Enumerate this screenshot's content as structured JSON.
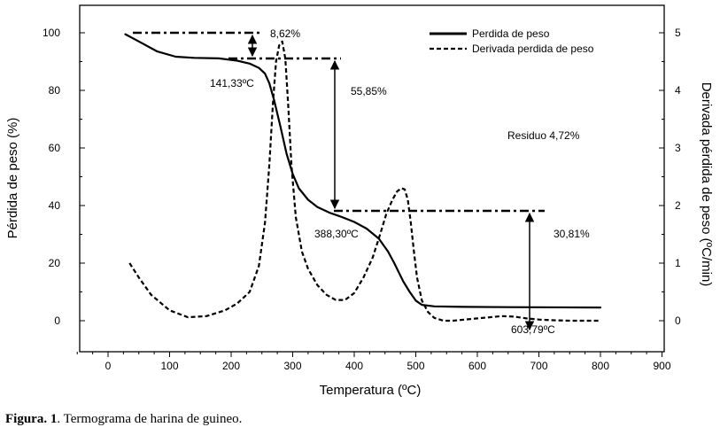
{
  "chart_data": {
    "type": "line",
    "xlabel": "Temperatura (ºC)",
    "ylabel_left": "Pérdida de peso (%)",
    "ylabel_right": "Derivada pérdida de peso (ºC/min)",
    "xlim": [
      -50,
      900
    ],
    "ylim_left": [
      -10,
      105
    ],
    "ylim_right": [
      -0.5,
      5.25
    ],
    "x_ticks": [
      0,
      100,
      200,
      300,
      400,
      500,
      600,
      700,
      800,
      900
    ],
    "y_left_ticks": [
      0,
      20,
      40,
      60,
      80,
      100
    ],
    "y_right_ticks": [
      0,
      1,
      2,
      3,
      4,
      5
    ],
    "legend_position": "top-right",
    "grid": false,
    "series": [
      {
        "name": "Perdida de peso",
        "axis": "left",
        "style": "solid",
        "x": [
          28,
          50,
          80,
          110,
          140,
          180,
          210,
          230,
          245,
          255,
          262,
          270,
          280,
          290,
          300,
          310,
          325,
          340,
          360,
          380,
          400,
          420,
          440,
          455,
          465,
          472,
          480,
          490,
          500,
          510,
          530,
          580,
          650,
          800
        ],
        "y": [
          99.5,
          97,
          93.5,
          91.7,
          91.3,
          91.1,
          90.3,
          89.3,
          87.8,
          85.8,
          82.5,
          76.5,
          67.5,
          58,
          51,
          46,
          42,
          39.5,
          37.5,
          36,
          34.3,
          32,
          28.5,
          24,
          20,
          17,
          13.5,
          10,
          7,
          5.5,
          5,
          4.8,
          4.7,
          4.6
        ]
      },
      {
        "name": "Derivada perdida de peso",
        "axis": "right",
        "style": "dashed",
        "x": [
          35,
          50,
          70,
          100,
          130,
          160,
          190,
          210,
          230,
          245,
          255,
          262,
          268,
          273,
          278,
          283,
          288,
          293,
          298,
          305,
          315,
          325,
          340,
          355,
          370,
          385,
          400,
          415,
          430,
          442,
          452,
          462,
          470,
          477,
          482,
          487,
          492,
          497,
          502,
          510,
          520,
          530,
          545,
          560,
          580,
          600,
          620,
          640,
          660,
          680,
          700,
          720,
          750,
          800
        ],
        "y": [
          1.0,
          0.75,
          0.45,
          0.18,
          0.06,
          0.08,
          0.18,
          0.3,
          0.5,
          0.95,
          1.7,
          2.7,
          3.8,
          4.5,
          4.78,
          4.85,
          4.55,
          3.7,
          2.7,
          1.8,
          1.2,
          0.9,
          0.62,
          0.45,
          0.36,
          0.36,
          0.48,
          0.75,
          1.1,
          1.5,
          1.85,
          2.1,
          2.25,
          2.3,
          2.28,
          2.1,
          1.7,
          1.2,
          0.75,
          0.35,
          0.15,
          0.05,
          0.0,
          0.0,
          0.02,
          0.04,
          0.06,
          0.08,
          0.07,
          0.04,
          0.02,
          0.01,
          0.0,
          0.0
        ]
      }
    ],
    "annotations": {
      "step1_percent": "8,62%",
      "step2_percent": "55,85%",
      "step3_percent": "30,81%",
      "temp1": "141,33ºC",
      "temp2": "388,30ºC",
      "temp3": "603,79ºC",
      "residue": "Residuo 4,72%"
    },
    "caption_bold": "Figura. 1",
    "caption_text": ". Termograma de harina de guineo."
  }
}
